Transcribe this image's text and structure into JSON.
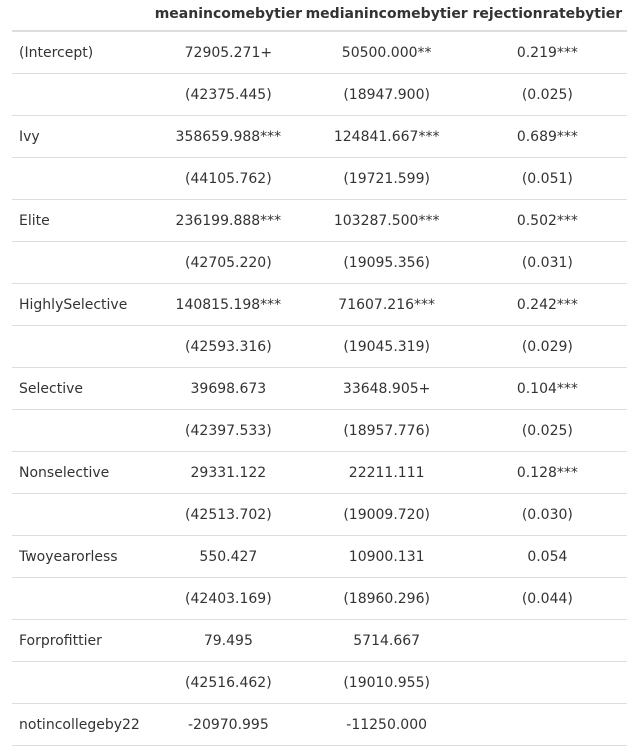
{
  "columns": [
    "",
    "meanincomebytier",
    "medianincomebytier",
    "rejectionratebytier"
  ],
  "rows": [
    {
      "label": "(Intercept)",
      "mean": "72905.271+",
      "median": "50500.000**",
      "rejection": "0.219***"
    },
    {
      "label": "",
      "mean": "(42375.445)",
      "median": "(18947.900)",
      "rejection": "(0.025)"
    },
    {
      "label": "Ivy",
      "mean": "358659.988***",
      "median": "124841.667***",
      "rejection": "0.689***"
    },
    {
      "label": "",
      "mean": "(44105.762)",
      "median": "(19721.599)",
      "rejection": "(0.051)"
    },
    {
      "label": "Elite",
      "mean": "236199.888***",
      "median": "103287.500***",
      "rejection": "0.502***"
    },
    {
      "label": "",
      "mean": "(42705.220)",
      "median": "(19095.356)",
      "rejection": "(0.031)"
    },
    {
      "label": "HighlySelective",
      "mean": "140815.198***",
      "median": "71607.216***",
      "rejection": "0.242***"
    },
    {
      "label": "",
      "mean": "(42593.316)",
      "median": "(19045.319)",
      "rejection": "(0.029)"
    },
    {
      "label": "Selective",
      "mean": "39698.673",
      "median": "33648.905+",
      "rejection": "0.104***"
    },
    {
      "label": "",
      "mean": "(42397.533)",
      "median": "(18957.776)",
      "rejection": "(0.025)"
    },
    {
      "label": "Nonselective",
      "mean": "29331.122",
      "median": "22211.111",
      "rejection": "0.128***"
    },
    {
      "label": "",
      "mean": "(42513.702)",
      "median": "(19009.720)",
      "rejection": "(0.030)"
    },
    {
      "label": "Twoyearorless",
      "mean": "550.427",
      "median": "10900.131",
      "rejection": "0.054"
    },
    {
      "label": "",
      "mean": "(42403.169)",
      "median": "(18960.296)",
      "rejection": "(0.044)"
    },
    {
      "label": "Forprofittier",
      "mean": "79.495",
      "median": "5714.667",
      "rejection": ""
    },
    {
      "label": "",
      "mean": "(42516.462)",
      "median": "(19010.955)",
      "rejection": ""
    },
    {
      "label": "notincollegeby22",
      "mean": "-20970.995",
      "median": "-11250.000",
      "rejection": ""
    }
  ]
}
